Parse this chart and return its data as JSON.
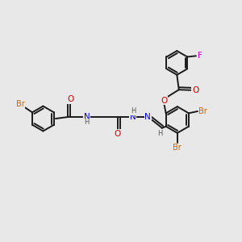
{
  "background_color": "#e8e8e8",
  "bond_color": "#1a1a1a",
  "atom_colors": {
    "Br": "#cc6600",
    "O": "#cc0000",
    "N": "#0000cc",
    "F": "#cc00cc",
    "H": "#555555",
    "C": "#1a1a1a"
  },
  "figsize": [
    3.0,
    3.0
  ],
  "dpi": 100
}
